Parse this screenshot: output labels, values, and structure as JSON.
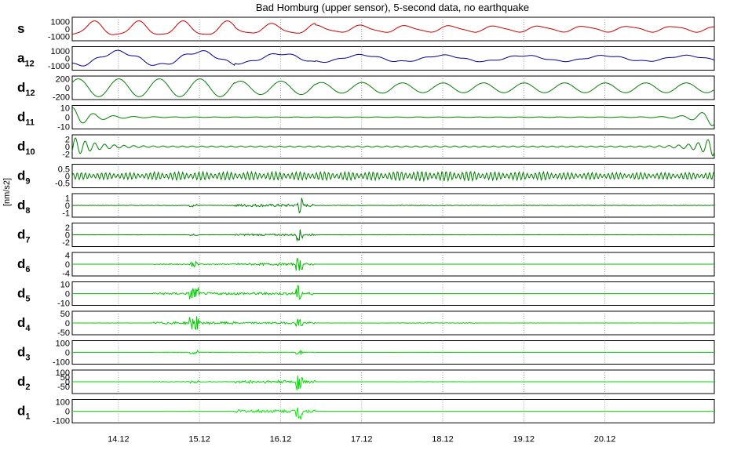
{
  "chart_data": {
    "type": "line",
    "title": "Bad Homburg (upper sensor), 5-second data, no earthquake",
    "ylabel": "[nm/s2]",
    "x_ticks": [
      "14.12",
      "15.12",
      "16.12",
      "17.12",
      "18.12",
      "19.12",
      "20.12"
    ],
    "grid": "x-dotted",
    "panels": [
      {
        "name": "s",
        "sub": "",
        "color": "#cc0000",
        "ylim": [
          -1500,
          1500
        ],
        "yticks": [
          "1000",
          "0",
          "-1000"
        ],
        "shape": "smooth",
        "amplitude": [
          1000,
          1000,
          700,
          500,
          450,
          420,
          400
        ],
        "period_days": 0.55
      },
      {
        "name": "a",
        "sub": "12",
        "color": "#000099",
        "ylim": [
          -1500,
          1500
        ],
        "yticks": [
          "1000",
          "0",
          "-1000"
        ],
        "shape": "smooth",
        "amplitude": [
          1000,
          1000,
          700,
          500,
          450,
          420,
          400
        ],
        "period_days": 1.0
      },
      {
        "name": "d",
        "sub": "12",
        "color": "#008000",
        "ylim": [
          -250,
          250
        ],
        "yticks": [
          "200",
          "0",
          "-200"
        ],
        "shape": "sine",
        "amplitude": [
          200,
          200,
          150,
          120,
          110,
          110,
          110
        ],
        "period_days": 0.5
      },
      {
        "name": "d",
        "sub": "11",
        "color": "#008000",
        "ylim": [
          -12,
          12
        ],
        "yticks": [
          "10",
          "0",
          "-10"
        ],
        "shape": "edge",
        "amplitude": [
          1,
          1,
          1,
          1,
          1,
          1,
          1
        ],
        "period_days": 0.25
      },
      {
        "name": "d",
        "sub": "10",
        "color": "#008000",
        "ylim": [
          -3,
          3
        ],
        "yticks": [
          "2",
          "0",
          "-2"
        ],
        "shape": "edge",
        "amplitude": [
          0.5,
          0.5,
          0.5,
          0.5,
          0.6,
          0.5,
          0.5
        ],
        "period_days": 0.12
      },
      {
        "name": "d",
        "sub": "9",
        "color": "#008000",
        "ylim": [
          -0.8,
          0.8
        ],
        "yticks": [
          "0.5",
          "0",
          "-0.5"
        ],
        "shape": "packet",
        "amplitude": [
          0.25,
          0.3,
          0.3,
          0.3,
          0.35,
          0.3,
          0.25
        ],
        "period_days": 0.05
      },
      {
        "name": "d",
        "sub": "8",
        "color": "#008000",
        "ylim": [
          -1.5,
          1.5
        ],
        "yticks": [
          "1",
          "0",
          "-1"
        ],
        "shape": "noise",
        "amplitude": [
          0.2,
          0.2,
          1.2,
          0.2,
          0.3,
          0.2,
          0.2
        ],
        "period_days": 0.02
      },
      {
        "name": "d",
        "sub": "7",
        "color": "#008000",
        "ylim": [
          -3,
          3
        ],
        "yticks": [
          "2",
          "0",
          "-2"
        ],
        "shape": "noise",
        "amplitude": [
          0.2,
          0.2,
          1.5,
          0.2,
          0.2,
          0.2,
          0.2
        ],
        "period_days": 0.01
      },
      {
        "name": "d",
        "sub": "6",
        "color": "#00bb00",
        "ylim": [
          -5,
          5
        ],
        "yticks": [
          "4",
          "0",
          "-4"
        ],
        "shape": "noise",
        "amplitude": [
          0.1,
          1.2,
          3.0,
          0.1,
          0.1,
          0.1,
          0.1
        ],
        "period_days": 0.005
      },
      {
        "name": "d",
        "sub": "5",
        "color": "#00cc00",
        "ylim": [
          -12,
          12
        ],
        "yticks": [
          "10",
          "0",
          "-10"
        ],
        "shape": "noise",
        "amplitude": [
          0.2,
          8,
          9,
          0.2,
          0.2,
          0.2,
          0.2
        ],
        "period_days": 0.003
      },
      {
        "name": "d",
        "sub": "4",
        "color": "#00cc00",
        "ylim": [
          -60,
          60
        ],
        "yticks": [
          "50",
          "0",
          "-50"
        ],
        "shape": "spikes",
        "amplitude": [
          2,
          40,
          30,
          2,
          10,
          2,
          2
        ],
        "period_days": 0.002
      },
      {
        "name": "d",
        "sub": "3",
        "color": "#00dd00",
        "ylim": [
          -120,
          120
        ],
        "yticks": [
          "100",
          "0",
          "-100"
        ],
        "shape": "spikes",
        "amplitude": [
          2,
          25,
          20,
          2,
          5,
          2,
          2
        ],
        "period_days": 0.002
      },
      {
        "name": "d",
        "sub": "2",
        "color": "#00dd00",
        "ylim": [
          -120,
          120
        ],
        "yticks": [
          "100",
          "50",
          "0",
          "-50"
        ],
        "shape": "spikes",
        "amplitude": [
          2,
          15,
          100,
          2,
          5,
          2,
          2
        ],
        "period_days": 0.002
      },
      {
        "name": "d",
        "sub": "1",
        "color": "#00ee00",
        "ylim": [
          -120,
          120
        ],
        "yticks": [
          "100",
          "0",
          "-100"
        ],
        "shape": "spikes",
        "amplitude": [
          1,
          3,
          100,
          1,
          1,
          1,
          1
        ],
        "period_days": 0.002
      }
    ]
  }
}
